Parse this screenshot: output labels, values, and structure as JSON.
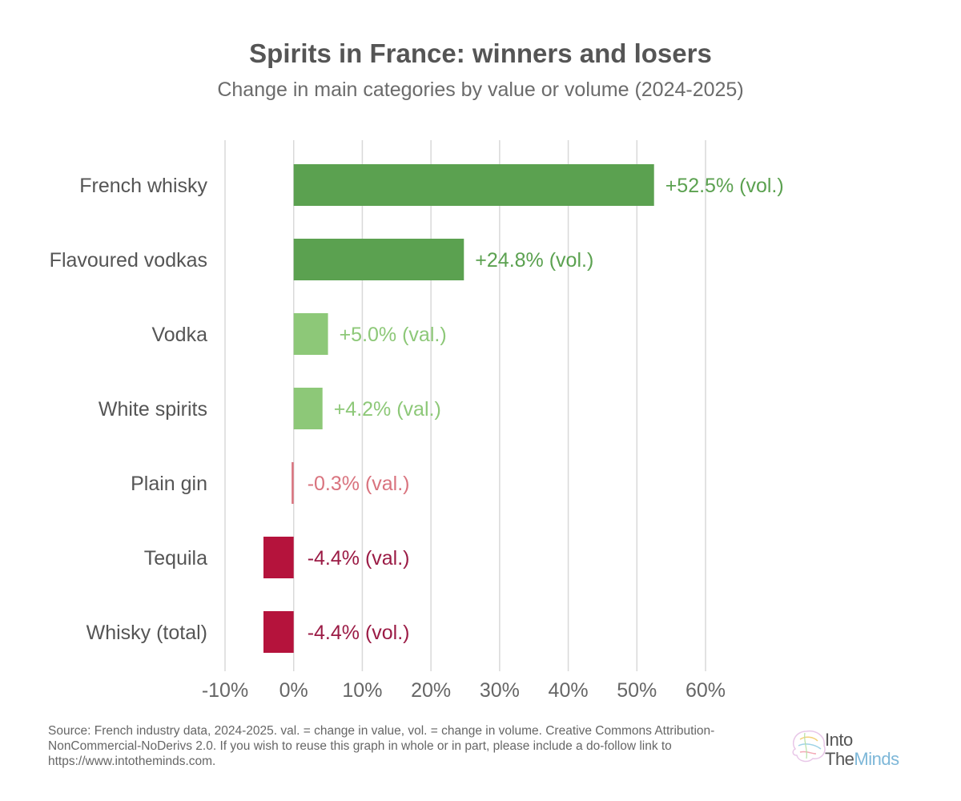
{
  "header": {
    "title": "Spirits in France: winners and losers",
    "subtitle": "Change in main categories by value or volume (2024-2025)"
  },
  "footer": {
    "source": "Source: French industry data, 2024-2025. val. = change in value, vol. = change in volume. Creative Commons Attribution-NonCommercial-NoDerivs 2.0. If you wish to reuse this graph in whole or in part, please include a do-follow link to https://www.intotheminds.com."
  },
  "logo": {
    "line1": "Into",
    "line2_part1": "The",
    "line2_part2": "Minds"
  },
  "chart_data": {
    "type": "bar",
    "orientation": "horizontal",
    "title": "Spirits in France: winners and losers",
    "subtitle": "Change in main categories by value or volume (2024-2025)",
    "categories": [
      "French whisky",
      "Flavoured vodkas",
      "Vodka",
      "White spirits",
      "Plain gin",
      "Tequila",
      "Whisky (total)"
    ],
    "values": [
      52.5,
      24.8,
      5.0,
      4.2,
      -0.3,
      -4.4,
      -4.4
    ],
    "data_labels": [
      "+52.5% (vol.)",
      "+24.8% (vol.)",
      "+5.0% (val.)",
      "+4.2% (val.)",
      "-0.3% (val.)",
      "-4.4% (val.)",
      "-4.4% (vol.)"
    ],
    "bar_colors": [
      "#5ba150",
      "#5ba150",
      "#8dc878",
      "#8dc878",
      "#d9737e",
      "#b5133c",
      "#b5133c"
    ],
    "label_colors": [
      "#5ba150",
      "#5ba150",
      "#8dc878",
      "#8dc878",
      "#d9737e",
      "#9b1b45",
      "#9b1b45"
    ],
    "xlim": [
      -10,
      60
    ],
    "xticks": [
      -10,
      0,
      10,
      20,
      30,
      40,
      50,
      60
    ],
    "xtick_labels": [
      "-10%",
      "0%",
      "10%",
      "20%",
      "30%",
      "40%",
      "50%",
      "60%"
    ],
    "xlabel": "",
    "ylabel": "",
    "grid": "vertical",
    "gridline_color": "#d9d9d9",
    "legend": "none"
  }
}
